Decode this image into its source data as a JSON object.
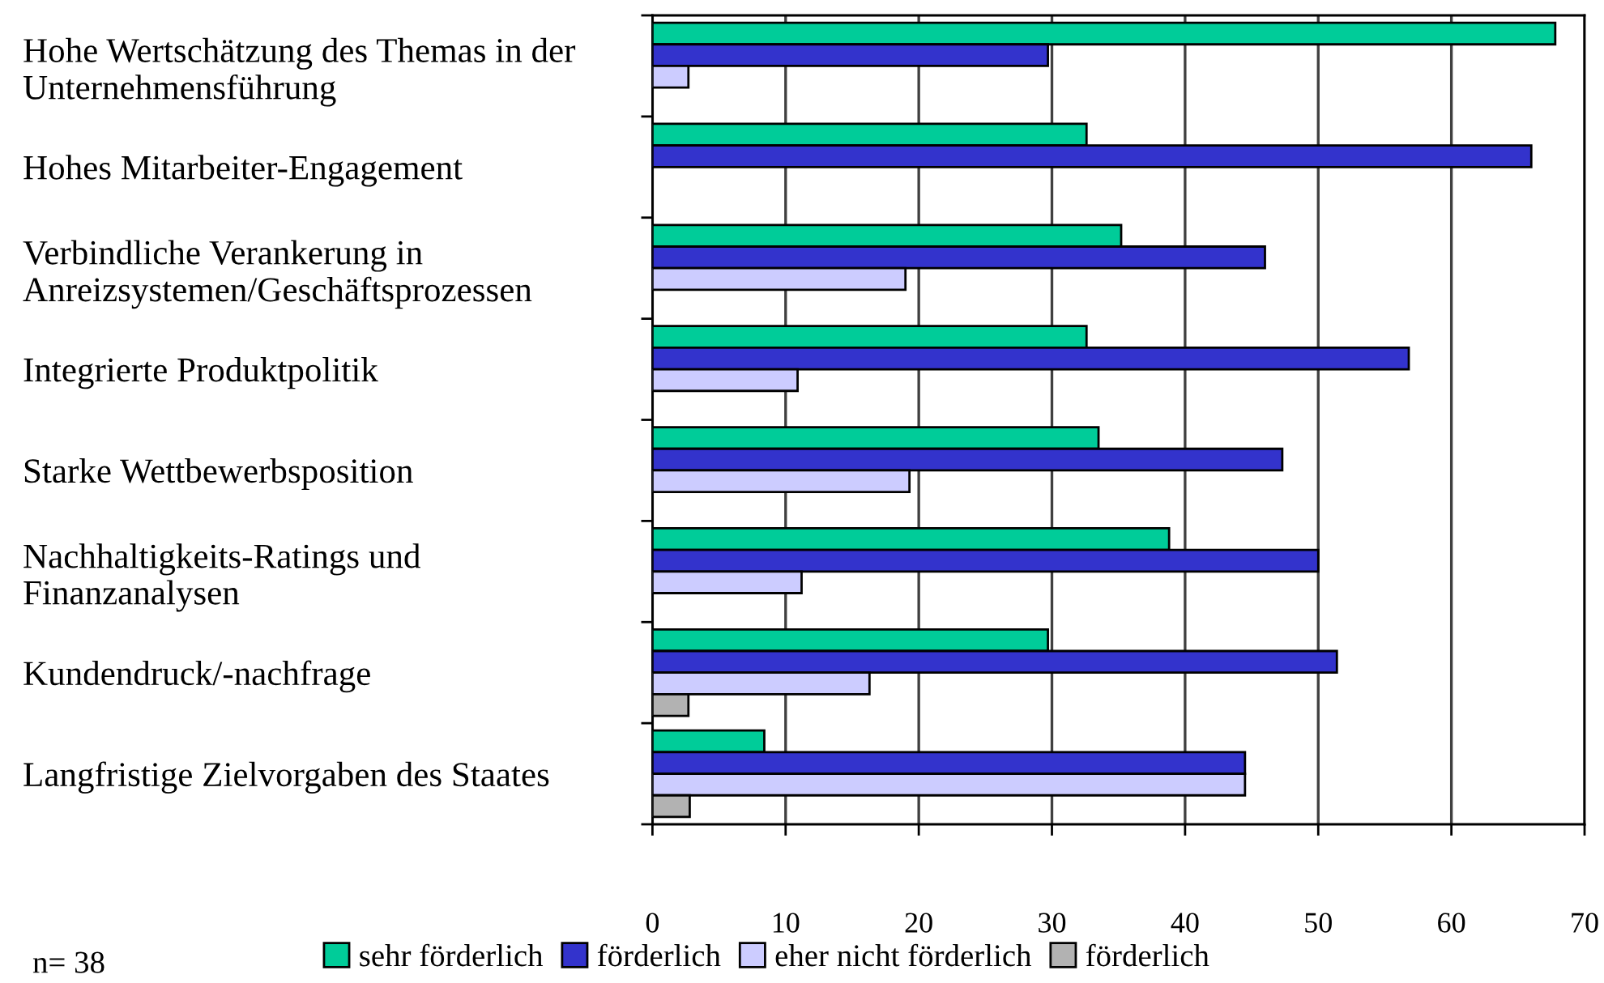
{
  "chart_data": {
    "type": "bar",
    "orientation": "horizontal",
    "categories": [
      "Hohe Wertschätzung des Themas in der\nUnternehmensführung",
      "Hohes Mitarbeiter-Engagement",
      "Verbindliche Verankerung in\nAnreizsystemen/Geschäftsprozessen",
      "Integrierte Produktpolitik",
      "Starke Wettbewerbsposition",
      "Nachhaltigkeits-Ratings und\nFinanzanalysen",
      "Kundendruck/-nachfrage",
      "Langfristige Zielvorgaben des Staates"
    ],
    "series": [
      {
        "name": "sehr förderlich",
        "color": "#00cc99",
        "values": [
          67.8,
          32.6,
          35.2,
          32.6,
          33.5,
          38.8,
          29.7,
          8.4
        ]
      },
      {
        "name": "förderlich",
        "color": "#3333cc",
        "values": [
          29.7,
          66.0,
          46.0,
          56.8,
          47.3,
          50.0,
          51.4,
          44.5
        ]
      },
      {
        "name": "eher nicht förderlich",
        "color": "#ccccff",
        "values": [
          2.7,
          null,
          19.0,
          10.9,
          19.3,
          11.2,
          16.3,
          44.5
        ]
      },
      {
        "name": "förderlich",
        "color": "#b2b2b2",
        "values": [
          null,
          null,
          null,
          null,
          null,
          null,
          2.7,
          2.8
        ]
      }
    ],
    "xlim": [
      0,
      70
    ],
    "xticks": [
      0,
      10,
      20,
      30,
      40,
      50,
      60,
      70
    ],
    "grid": "x",
    "legend": "bottom",
    "annotations": [
      "n= 38"
    ]
  }
}
